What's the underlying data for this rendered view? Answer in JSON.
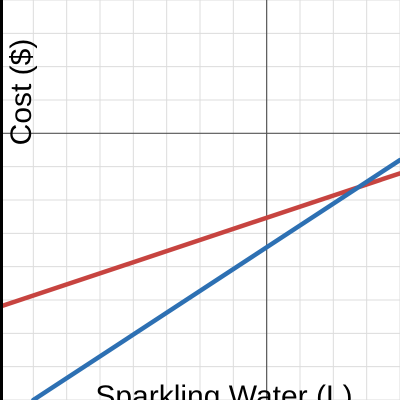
{
  "chart_data": {
    "type": "line",
    "xlabel": "Sparkling Water (L)",
    "ylabel": "Cost ($)",
    "grid": true,
    "xlim": [
      -4,
      2
    ],
    "ylim": [
      -4,
      2
    ],
    "series": [
      {
        "color": "#c74440",
        "x": [
          -4,
          2
        ],
        "y": [
          -2.6,
          -0.6
        ]
      },
      {
        "color": "#2d70b3",
        "x": [
          -3.5,
          2
        ],
        "y": [
          -4,
          -0.4
        ]
      }
    ]
  }
}
